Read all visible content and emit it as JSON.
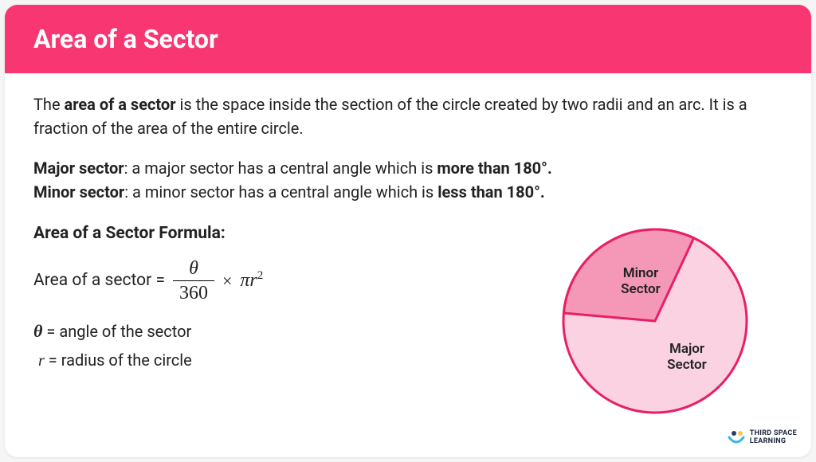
{
  "header": {
    "title": "Area of a Sector",
    "background_color": "#f73672",
    "text_color": "#ffffff"
  },
  "intro": {
    "prefix": "The ",
    "bold_term": "area of a sector",
    "rest": " is the space inside the section of the circle created by two radii and an arc. It is a fraction of the area of the entire circle."
  },
  "definitions": {
    "major": {
      "label": "Major sector",
      "text": ": a major sector has a central angle which is ",
      "bold_end": "more than 180°."
    },
    "minor": {
      "label": "Minor sector",
      "text": ": a minor sector has a central angle which is ",
      "bold_end": "less than 180°."
    }
  },
  "formula": {
    "title": "Area of a Sector Formula:",
    "lhs": "Area of a sector =",
    "numerator": "θ",
    "denominator": "360",
    "times": "×",
    "rhs_pi": "π",
    "rhs_r": "r",
    "rhs_exp": "2",
    "theta_def_symbol": "θ",
    "theta_def_text": " = angle of the sector",
    "r_def_symbol": "r",
    "r_def_text": " = radius of the circle"
  },
  "diagram": {
    "minor_label": "Minor",
    "minor_label2": "Sector",
    "major_label": "Major",
    "major_label2": "Sector",
    "circle_radius": 115,
    "stroke_color": "#e91e63",
    "stroke_width": 3,
    "minor_fill": "#f598b8",
    "major_fill": "#fbd2e2",
    "minor_angle_start": 185,
    "minor_angle_end": 295,
    "label_fontsize": 17,
    "label_color": "#222222"
  },
  "branding": {
    "name_line1": "THIRD SPACE",
    "name_line2": "LEARNING",
    "dot_colors": [
      "#2b3a67",
      "#f9c846",
      "#35b6e8"
    ]
  },
  "colors": {
    "card_bg": "#ffffff",
    "text": "#1a1a1a"
  }
}
